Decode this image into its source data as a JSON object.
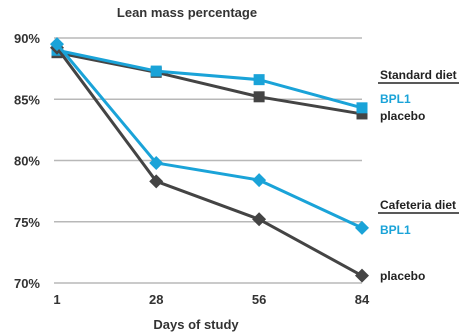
{
  "chart_data": {
    "type": "line",
    "title": "Lean mass percentage",
    "xlabel": "Days of study",
    "ylabel": "",
    "x": [
      1,
      28,
      56,
      84
    ],
    "x_tick_labels": [
      "1",
      "28",
      "56",
      "84"
    ],
    "y_ticks": [
      70,
      75,
      80,
      85,
      90
    ],
    "y_tick_labels": [
      "70%",
      "75%",
      "80%",
      "85%",
      "90%"
    ],
    "ylim": [
      70,
      90
    ],
    "grid": "horizontal",
    "series": [
      {
        "group": "Standard diet",
        "name": "BPL1",
        "marker": "square",
        "color": "#1aa3d8",
        "values": [
          89.0,
          87.3,
          86.6,
          84.3
        ]
      },
      {
        "group": "Standard diet",
        "name": "placebo",
        "marker": "square",
        "color": "#444444",
        "values": [
          88.8,
          87.2,
          85.2,
          83.8
        ]
      },
      {
        "group": "Cafeteria diet",
        "name": "BPL1",
        "marker": "diamond",
        "color": "#1aa3d8",
        "values": [
          89.5,
          79.8,
          78.4,
          74.5
        ]
      },
      {
        "group": "Cafeteria diet",
        "name": "placebo",
        "marker": "diamond",
        "color": "#444444",
        "values": [
          89.2,
          78.3,
          75.2,
          70.6
        ]
      }
    ],
    "annotations": {
      "standard_group": "Standard diet",
      "cafeteria_group": "Cafeteria diet"
    }
  }
}
